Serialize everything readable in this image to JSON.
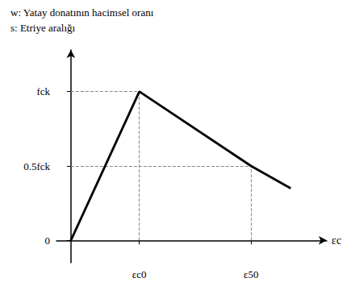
{
  "chart_data": {
    "type": "line",
    "title": "w: Yatay donatının hacimsel oranı",
    "subtitle": "s: Etriye aralığı",
    "xlabel": "εc",
    "x": [
      0.0,
      0.38,
      1.0,
      1.22
    ],
    "values": [
      0.0,
      1.0,
      0.5,
      0.35
    ],
    "color": "#000000",
    "xlim": [
      -0.08,
      1.42
    ],
    "ylim": [
      -0.15,
      1.28
    ],
    "xticks": [
      {
        "value": 0.38,
        "label": "εc0"
      },
      {
        "value": 1.0,
        "label": "ε50"
      }
    ],
    "yticks": [
      0,
      {
        "value": 0.5,
        "label": "0.5fck"
      },
      {
        "value": 1.0,
        "label": "fck"
      }
    ],
    "grid": false
  }
}
